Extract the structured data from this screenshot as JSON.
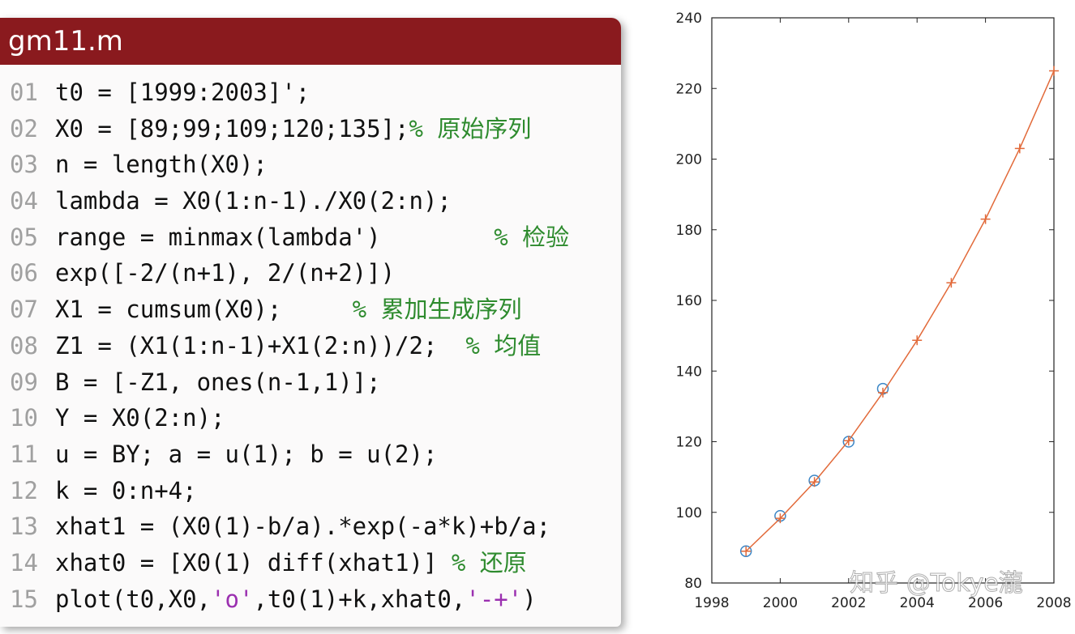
{
  "code": {
    "title": "gm11.m",
    "lines": [
      {
        "no": "01",
        "segments": [
          {
            "text": "t0 = [1999:2003]';",
            "color": "#111111"
          }
        ]
      },
      {
        "no": "02",
        "segments": [
          {
            "text": "X0 = [89;99;109;120;135];",
            "color": "#111111"
          },
          {
            "text": "% 原始序列",
            "color": "#2e8b2e"
          }
        ]
      },
      {
        "no": "03",
        "segments": [
          {
            "text": "n = length(X0);",
            "color": "#111111"
          }
        ]
      },
      {
        "no": "04",
        "segments": [
          {
            "text": "lambda = X0(1:n-1)./X0(2:n);",
            "color": "#111111"
          }
        ]
      },
      {
        "no": "05",
        "segments": [
          {
            "text": "range = minmax(lambda')        ",
            "color": "#111111"
          },
          {
            "text": "% 检验",
            "color": "#2e8b2e"
          }
        ]
      },
      {
        "no": "06",
        "segments": [
          {
            "text": "exp([-2/(n+1), 2/(n+2)])",
            "color": "#111111"
          }
        ]
      },
      {
        "no": "07",
        "segments": [
          {
            "text": "X1 = cumsum(X0);     ",
            "color": "#111111"
          },
          {
            "text": "% 累加生成序列",
            "color": "#2e8b2e"
          }
        ]
      },
      {
        "no": "08",
        "segments": [
          {
            "text": "Z1 = (X1(1:n-1)+X1(2:n))/2;  ",
            "color": "#111111"
          },
          {
            "text": "% 均值",
            "color": "#2e8b2e"
          }
        ]
      },
      {
        "no": "09",
        "segments": [
          {
            "text": "B = [-Z1, ones(n-1,1)];",
            "color": "#111111"
          }
        ]
      },
      {
        "no": "10",
        "segments": [
          {
            "text": "Y = X0(2:n);",
            "color": "#111111"
          }
        ]
      },
      {
        "no": "11",
        "segments": [
          {
            "text": "u = BY; a = u(1); b = u(2);",
            "color": "#111111"
          }
        ]
      },
      {
        "no": "12",
        "segments": [
          {
            "text": "k = 0:n+4;",
            "color": "#111111"
          }
        ]
      },
      {
        "no": "13",
        "segments": [
          {
            "text": "xhat1 = (X0(1)-b/a).*exp(-a*k)+b/a;",
            "color": "#111111"
          }
        ]
      },
      {
        "no": "14",
        "segments": [
          {
            "text": "xhat0 = [X0(1) diff(xhat1)] ",
            "color": "#111111"
          },
          {
            "text": "% 还原",
            "color": "#2e8b2e"
          }
        ]
      },
      {
        "no": "15",
        "segments": [
          {
            "text": "plot(t0,X0,",
            "color": "#111111"
          },
          {
            "text": "'o'",
            "color": "#9b30b0"
          },
          {
            "text": ",t0(1)+k,xhat0,",
            "color": "#111111"
          },
          {
            "text": "'-+'",
            "color": "#9b30b0"
          },
          {
            "text": ")",
            "color": "#111111"
          }
        ]
      }
    ]
  },
  "chart_data": {
    "type": "line",
    "series": [
      {
        "color": "#3b86c6",
        "marker": "o",
        "x": [
          1999,
          2000,
          2001,
          2002,
          2003
        ],
        "values": [
          89,
          99,
          109,
          120,
          135
        ]
      },
      {
        "color": "#e26a3a",
        "marker": "+",
        "x": [
          1999,
          2000,
          2001,
          2002,
          2003,
          2004,
          2005,
          2006,
          2007,
          2008
        ],
        "values": [
          89,
          98.3,
          108.6,
          120.3,
          133.9,
          148.7,
          165,
          183,
          203,
          225
        ]
      }
    ],
    "xlim": [
      1998,
      2008
    ],
    "ylim": [
      80,
      240
    ],
    "xticks": [
      1998,
      2000,
      2002,
      2004,
      2006,
      2008
    ],
    "yticks": [
      80,
      100,
      120,
      140,
      160,
      180,
      200,
      220,
      240
    ],
    "grid": false
  },
  "watermark": "知乎 @Tokye瀧"
}
